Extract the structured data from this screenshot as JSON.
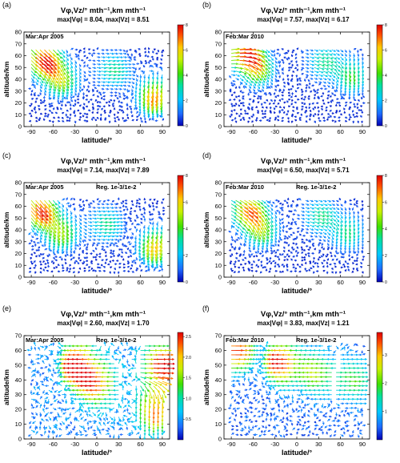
{
  "chart_data": [
    {
      "type": "vector_field",
      "panel_label": "(a)",
      "title": "Vφ,Vz/° mth⁻¹,km mth⁻¹",
      "subtitle": "max|Vφ| = 8.04, max|Vz| = 8.51",
      "period": "Mar:Apr 2005",
      "regularization": "",
      "xlabel": "latitude/°",
      "ylabel": "altitude/km",
      "xlim": [
        -100,
        100
      ],
      "ylim": [
        0,
        80
      ],
      "xticks": [
        "-90",
        "-60",
        "-30",
        "0",
        "30",
        "60",
        "90"
      ],
      "yticks": [
        "0",
        "10",
        "20",
        "30",
        "40",
        "50",
        "60",
        "70",
        "80"
      ],
      "colorbar": {
        "min": 0,
        "max": 8,
        "ticks": [
          "0",
          "2",
          "4",
          "6",
          "8"
        ]
      },
      "field": {
        "lat_range": [
          -90,
          90
        ],
        "lat_step": 6,
        "alt_range": [
          5,
          67
        ],
        "alt_step": 3,
        "features": [
          {
            "lat": -75,
            "alt": 58,
            "strength": 7.8,
            "direction": -45
          },
          {
            "lat": -50,
            "alt": 42,
            "strength": 4.5,
            "direction": -70
          },
          {
            "lat": 20,
            "alt": 48,
            "strength": 3.0,
            "direction": -10
          },
          {
            "lat": 80,
            "alt": 28,
            "strength": 6.5,
            "direction": -100
          }
        ]
      }
    },
    {
      "type": "vector_field",
      "panel_label": "(b)",
      "title": "Vφ,Vz/° mth⁻¹,km mth⁻¹",
      "subtitle": "max|Vφ| = 7.57, max|Vz| = 6.17",
      "period": "Feb:Mar 2010",
      "regularization": "",
      "xlabel": "latitude/°",
      "ylabel": "altitude/km",
      "xlim": [
        -100,
        100
      ],
      "ylim": [
        0,
        80
      ],
      "xticks": [
        "-90",
        "-60",
        "-30",
        "0",
        "30",
        "60",
        "90"
      ],
      "yticks": [
        "0",
        "10",
        "20",
        "30",
        "40",
        "50",
        "60",
        "70",
        "80"
      ],
      "colorbar": {
        "min": 0,
        "max": 8,
        "ticks": [
          "0",
          "2",
          "4",
          "6",
          "8"
        ]
      },
      "field": {
        "lat_range": [
          -90,
          90
        ],
        "lat_step": 6,
        "alt_range": [
          5,
          67
        ],
        "alt_step": 3,
        "features": [
          {
            "lat": -75,
            "alt": 62,
            "strength": 7.0,
            "direction": 10
          },
          {
            "lat": -55,
            "alt": 50,
            "strength": 4.0,
            "direction": -60
          },
          {
            "lat": 35,
            "alt": 55,
            "strength": 3.0,
            "direction": -20
          },
          {
            "lat": 75,
            "alt": 45,
            "strength": 3.5,
            "direction": -80
          }
        ]
      }
    },
    {
      "type": "vector_field",
      "panel_label": "(c)",
      "title": "Vφ,Vz/° mth⁻¹,km mth⁻¹",
      "subtitle": "max|Vφ| = 7.14, max|Vz| = 7.89",
      "period": "Mar:Apr 2005",
      "regularization": "Reg. 1e-3/1e-2",
      "xlabel": "latitude/°",
      "ylabel": "altitude/km",
      "xlim": [
        -100,
        100
      ],
      "ylim": [
        0,
        80
      ],
      "xticks": [
        "-90",
        "-60",
        "-30",
        "0",
        "30",
        "60",
        "90"
      ],
      "yticks": [
        "0",
        "10",
        "20",
        "30",
        "40",
        "50",
        "60",
        "70",
        "80"
      ],
      "colorbar": {
        "min": 0,
        "max": 8,
        "ticks": [
          "0",
          "2",
          "4",
          "6",
          "8"
        ]
      },
      "field": {
        "lat_range": [
          -90,
          90
        ],
        "lat_step": 6,
        "alt_range": [
          5,
          67
        ],
        "alt_step": 3,
        "features": [
          {
            "lat": -80,
            "alt": 58,
            "strength": 7.5,
            "direction": -50
          },
          {
            "lat": -50,
            "alt": 40,
            "strength": 4.5,
            "direction": -75
          },
          {
            "lat": 10,
            "alt": 45,
            "strength": 3.0,
            "direction": -10
          },
          {
            "lat": 82,
            "alt": 28,
            "strength": 6.0,
            "direction": -105
          }
        ]
      }
    },
    {
      "type": "vector_field",
      "panel_label": "(d)",
      "title": "Vφ,Vz/° mth⁻¹,km mth⁻¹",
      "subtitle": "max|Vφ| = 6.50, max|Vz| = 5.71",
      "period": "Feb:Mar 2010",
      "regularization": "Reg. 1e-3/1e-2",
      "xlabel": "latitude/°",
      "ylabel": "altitude/km",
      "xlim": [
        -100,
        100
      ],
      "ylim": [
        0,
        80
      ],
      "xticks": [
        "-90",
        "-60",
        "-30",
        "0",
        "30",
        "60",
        "90"
      ],
      "yticks": [
        "0",
        "10",
        "20",
        "30",
        "40",
        "50",
        "60",
        "70",
        "80"
      ],
      "colorbar": {
        "min": 0,
        "max": 8,
        "ticks": [
          "0",
          "2",
          "4",
          "6",
          "8"
        ]
      },
      "field": {
        "lat_range": [
          -90,
          90
        ],
        "lat_step": 6,
        "alt_range": [
          5,
          67
        ],
        "alt_step": 3,
        "features": [
          {
            "lat": -70,
            "alt": 58,
            "strength": 6.5,
            "direction": -30
          },
          {
            "lat": -50,
            "alt": 42,
            "strength": 4.0,
            "direction": -70
          },
          {
            "lat": 30,
            "alt": 52,
            "strength": 3.0,
            "direction": -20
          },
          {
            "lat": 70,
            "alt": 40,
            "strength": 3.0,
            "direction": -80
          }
        ]
      }
    },
    {
      "type": "vector_field",
      "panel_label": "(e)",
      "title": "Vφ,Vz/° mth⁻¹,km mth⁻¹",
      "subtitle": "max|Vφ| = 2.60, max|Vz| = 1.70",
      "period": "Mar:Apr 2005",
      "regularization": "Reg. 1e-3/1e-2",
      "xlabel": "latitude/°",
      "ylabel": "altitude/km",
      "xlim": [
        -100,
        100
      ],
      "ylim": [
        0,
        70
      ],
      "xticks": [
        "-90",
        "-60",
        "-30",
        "0",
        "30",
        "60",
        "90"
      ],
      "yticks": [
        "0",
        "10",
        "20",
        "30",
        "40",
        "50",
        "60",
        "70"
      ],
      "colorbar": {
        "min": 0,
        "max": 2.6,
        "ticks": [
          "0.5",
          "1.0",
          "1.5",
          "2.0",
          "2.5"
        ]
      },
      "field": {
        "lat_range": [
          -90,
          90
        ],
        "lat_step": 6,
        "alt_range": [
          3,
          67
        ],
        "alt_step": 3,
        "features": [
          {
            "lat": -20,
            "alt": 50,
            "strength": 2.5,
            "direction": 180
          },
          {
            "lat": 5,
            "alt": 38,
            "strength": 2.0,
            "direction": 180
          },
          {
            "lat": 85,
            "alt": 50,
            "strength": 2.4,
            "direction": 0
          },
          {
            "lat": 80,
            "alt": 22,
            "strength": 1.8,
            "direction": -90
          }
        ]
      }
    },
    {
      "type": "vector_field",
      "panel_label": "(f)",
      "title": "Vφ,Vz/° mth⁻¹,km mth⁻¹",
      "subtitle": "max|Vφ| = 3.83, max|Vz| = 1.21",
      "period": "Feb:Mar 2010",
      "regularization": "Reg. 1e-3/1e-2",
      "xlabel": "latitude/°",
      "ylabel": "altitude/km",
      "xlim": [
        -100,
        100
      ],
      "ylim": [
        0,
        70
      ],
      "xticks": [
        "-90",
        "-60",
        "-30",
        "0",
        "30",
        "60",
        "90"
      ],
      "yticks": [
        "0",
        "10",
        "20",
        "30",
        "40",
        "50",
        "60",
        "70"
      ],
      "colorbar": {
        "min": 0,
        "max": 3.8,
        "ticks": [
          "1",
          "2",
          "3"
        ]
      },
      "field": {
        "lat_range": [
          -90,
          90
        ],
        "lat_step": 6,
        "alt_range": [
          3,
          67
        ],
        "alt_step": 3,
        "features": [
          {
            "lat": -15,
            "alt": 52,
            "strength": 3.6,
            "direction": 180
          },
          {
            "lat": -85,
            "alt": 60,
            "strength": 3.2,
            "direction": 0
          },
          {
            "lat": 30,
            "alt": 45,
            "strength": 2.0,
            "direction": 180
          },
          {
            "lat": 75,
            "alt": 40,
            "strength": 1.5,
            "direction": 0
          }
        ]
      }
    }
  ]
}
